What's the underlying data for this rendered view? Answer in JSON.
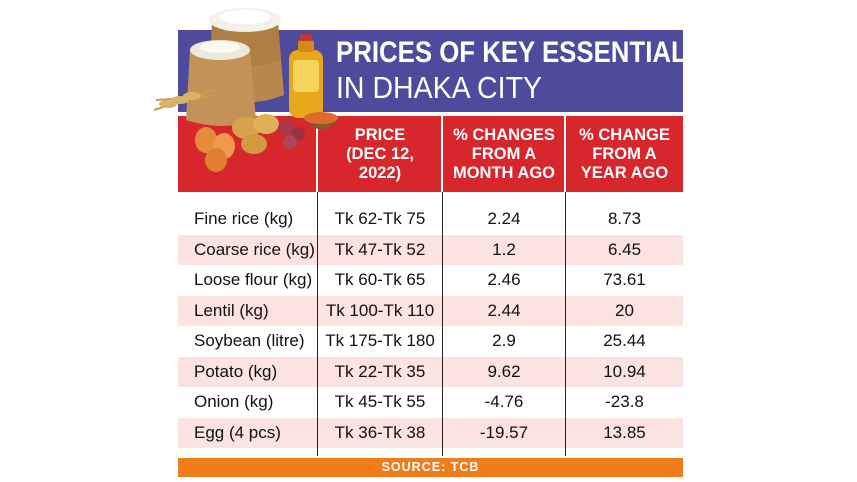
{
  "chart_data": {
    "type": "table",
    "title_line1": "PRICES OF KEY ESSENTIALS",
    "title_line2": "IN DHAKA CITY",
    "columns": [
      "",
      "PRICE\n(DEC 12,\n2022)",
      "% CHANGES\nFROM A\nMONTH AGO",
      "% CHANGE\nFROM A\nYEAR AGO"
    ],
    "rows": [
      {
        "item": "Fine rice (kg)",
        "price": "Tk 62-Tk 75",
        "month_change": "2.24",
        "year_change": "8.73"
      },
      {
        "item": "Coarse rice (kg)",
        "price": "Tk 47-Tk 52",
        "month_change": "1.2",
        "year_change": "6.45"
      },
      {
        "item": "Loose flour (kg)",
        "price": "Tk 60-Tk 65",
        "month_change": "2.46",
        "year_change": "73.61"
      },
      {
        "item": "Lentil (kg)",
        "price": "Tk 100-Tk 110",
        "month_change": "2.44",
        "year_change": "20"
      },
      {
        "item": "Soybean (litre)",
        "price": "Tk 175-Tk 180",
        "month_change": "2.9",
        "year_change": "25.44"
      },
      {
        "item": "Potato (kg)",
        "price": "Tk 22-Tk 35",
        "month_change": "9.62",
        "year_change": "10.94"
      },
      {
        "item": "Onion (kg)",
        "price": "Tk 45-Tk 55",
        "month_change": "-4.76",
        "year_change": "-23.8"
      },
      {
        "item": "Egg (4 pcs)",
        "price": "Tk 36-Tk 38",
        "month_change": "-19.57",
        "year_change": "13.85"
      }
    ],
    "source": "SOURCE: TCB"
  },
  "colors": {
    "title_band": "#4e4a9c",
    "header_band": "#d7262c",
    "row_shade": "#fbe3e1",
    "source_band": "#f07d1a"
  },
  "illustration": {
    "icons": [
      "rice-sack-icon",
      "flour-sack-icon",
      "oil-bottle-icon",
      "wheat-icon",
      "lentil-bowl-icon",
      "potato-icon",
      "onion-icon",
      "egg-icon"
    ]
  }
}
